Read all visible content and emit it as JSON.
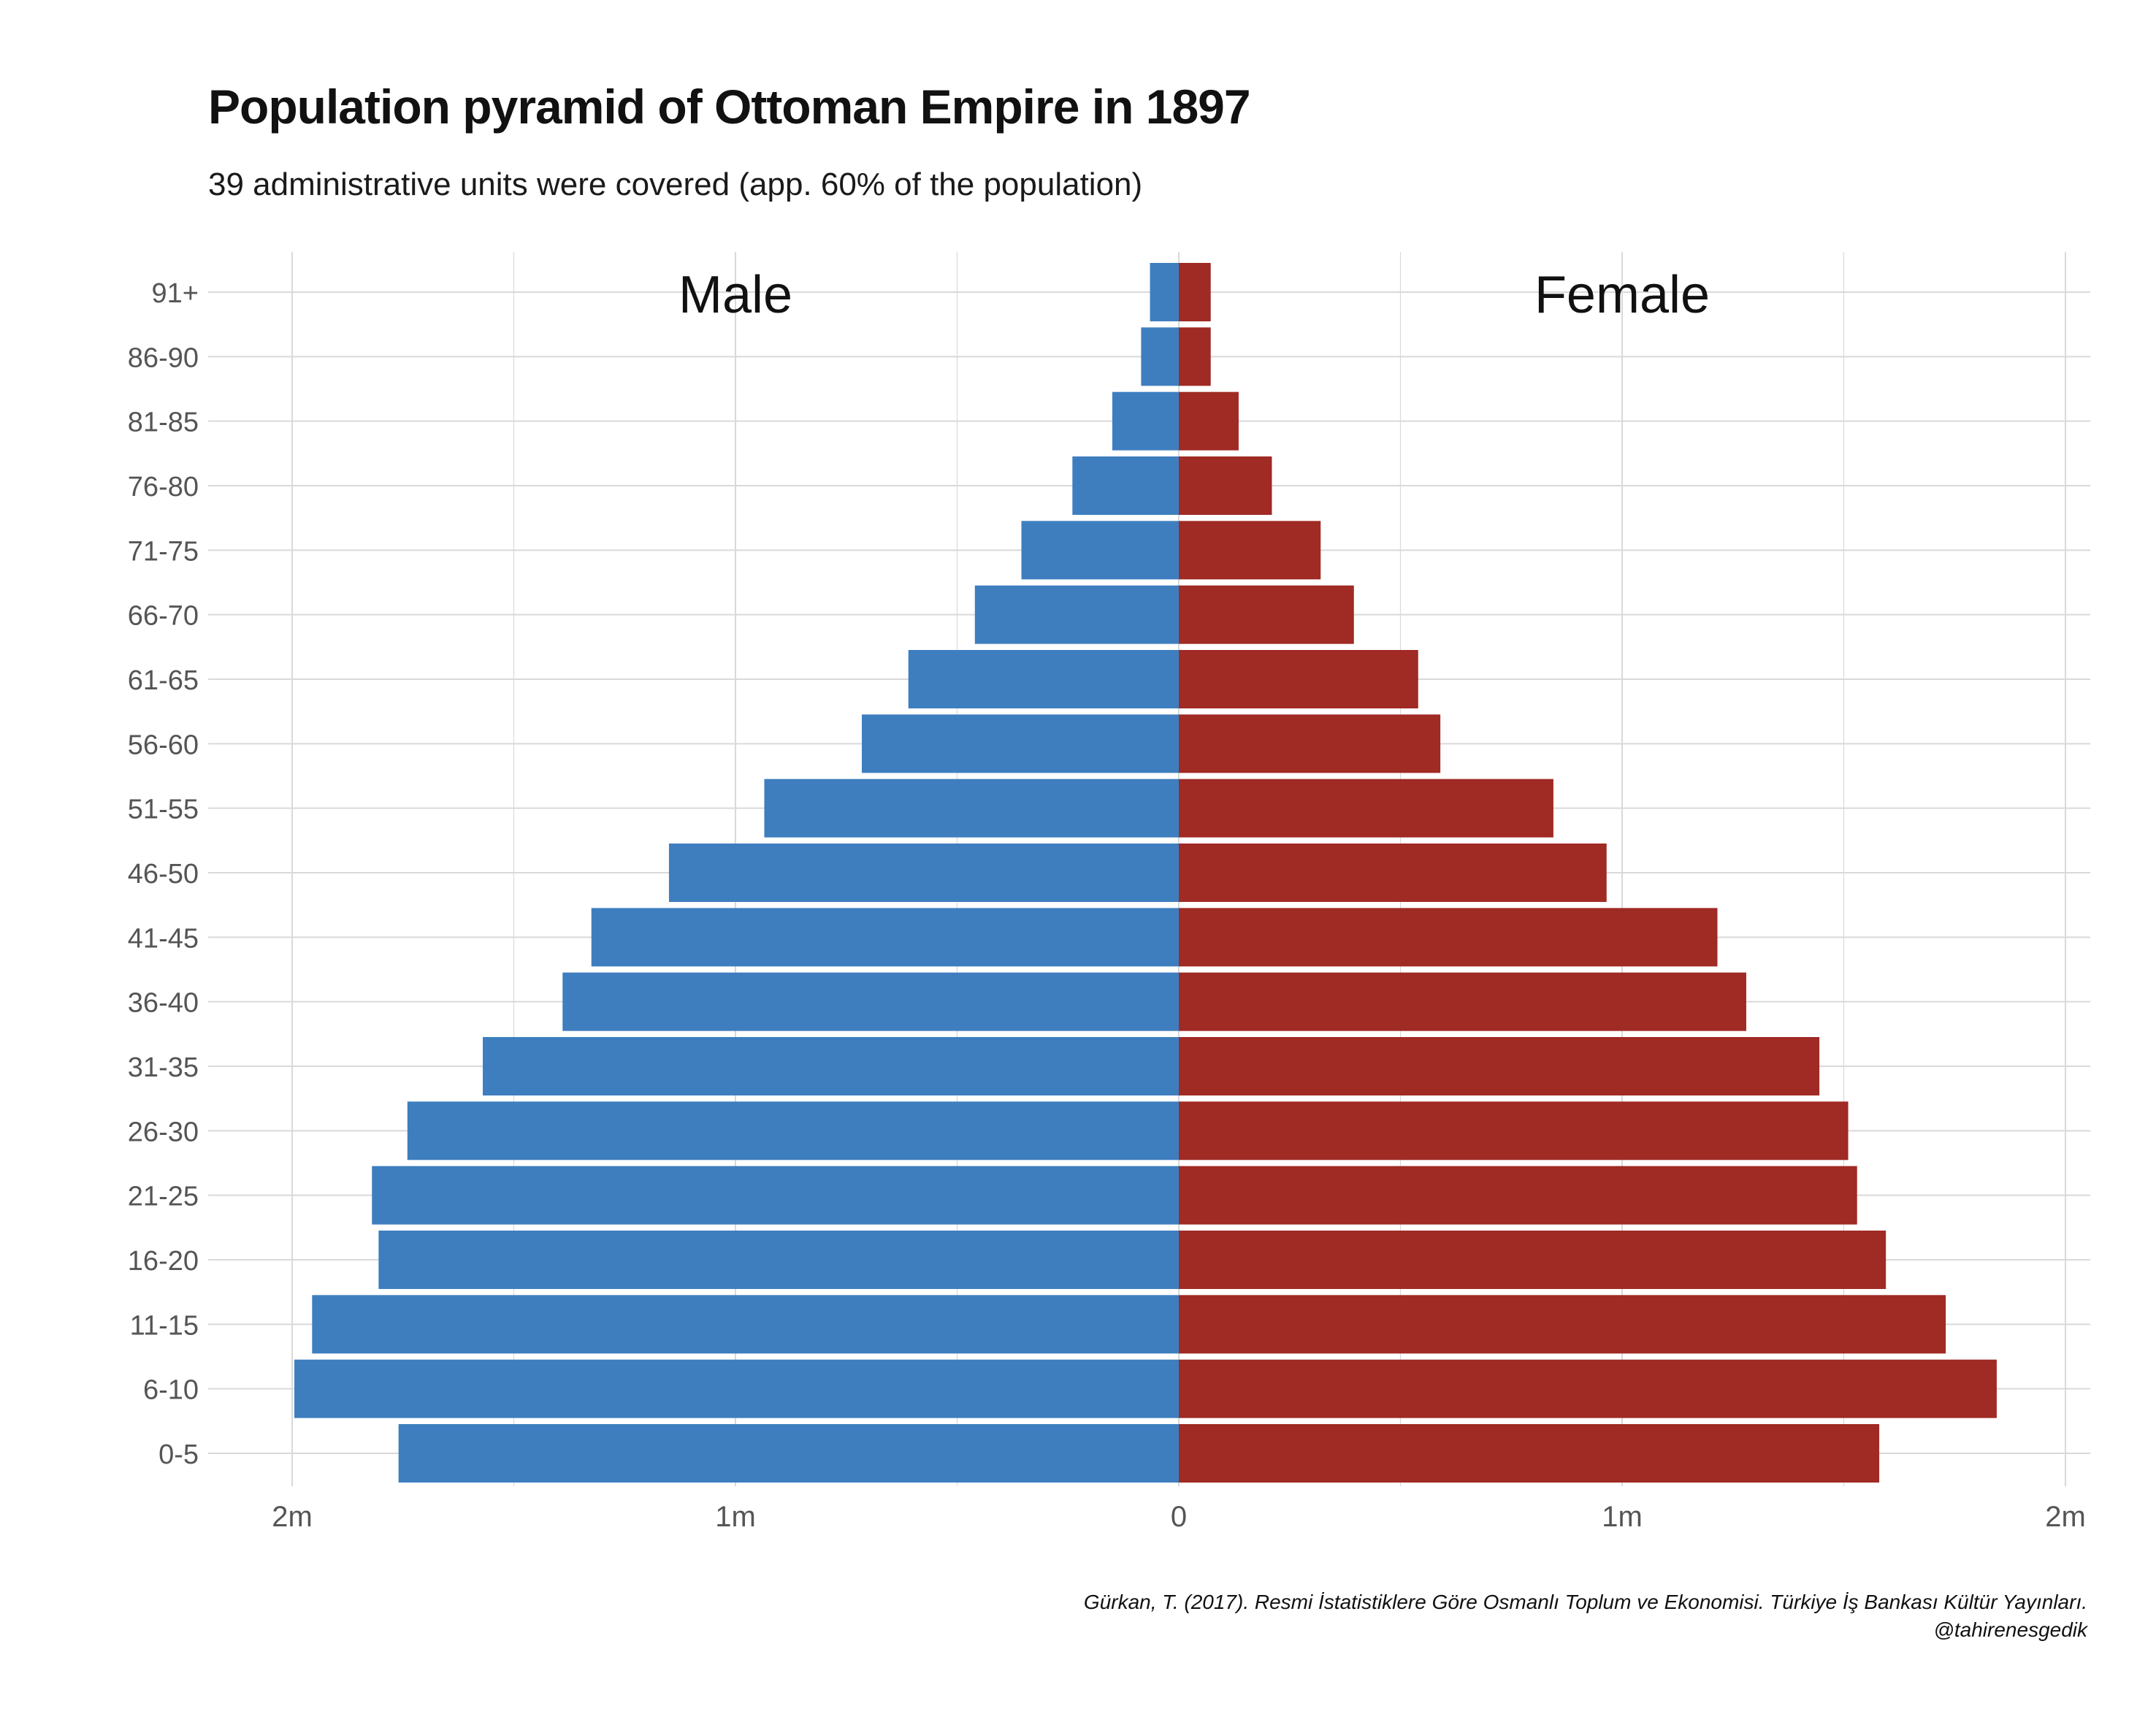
{
  "title": "Population pyramid of Ottoman Empire in 1897",
  "subtitle": "39 administrative units were covered (app. 60% of the population)",
  "caption": {
    "source": "Gürkan, T. (2017). Resmi İstatistiklere Göre Osmanlı Toplum ve Ekonomisi. Türkiye İş Bankası Kültür Yayınları.",
    "handle": "@tahirenesgedik"
  },
  "colors": {
    "male": "#3e7ebf",
    "female": "#a02a24",
    "grid": "#d9d9d9",
    "text": "#555555"
  },
  "chart_data": {
    "type": "bar",
    "orientation": "horizontal-pyramid",
    "categories": [
      "0-5",
      "6-10",
      "11-15",
      "16-20",
      "21-25",
      "26-30",
      "31-35",
      "36-40",
      "41-45",
      "46-50",
      "51-55",
      "56-60",
      "61-65",
      "66-70",
      "71-75",
      "76-80",
      "81-85",
      "86-90",
      "91+"
    ],
    "series": [
      {
        "name": "Male",
        "values": [
          1760000,
          1995000,
          1955000,
          1805000,
          1820000,
          1740000,
          1570000,
          1390000,
          1325000,
          1150000,
          935000,
          715000,
          610000,
          460000,
          355000,
          240000,
          150000,
          85000,
          65000
        ]
      },
      {
        "name": "Female",
        "values": [
          1580000,
          1845000,
          1730000,
          1595000,
          1530000,
          1510000,
          1445000,
          1280000,
          1215000,
          965000,
          845000,
          590000,
          540000,
          395000,
          320000,
          210000,
          135000,
          72000,
          72000
        ]
      }
    ],
    "xticks": [
      "2m",
      "1m",
      "0",
      "1m",
      "2m"
    ],
    "xlim": [
      -2000000,
      2000000
    ],
    "panel_labels": [
      "Male",
      "Female"
    ],
    "grid": true
  }
}
